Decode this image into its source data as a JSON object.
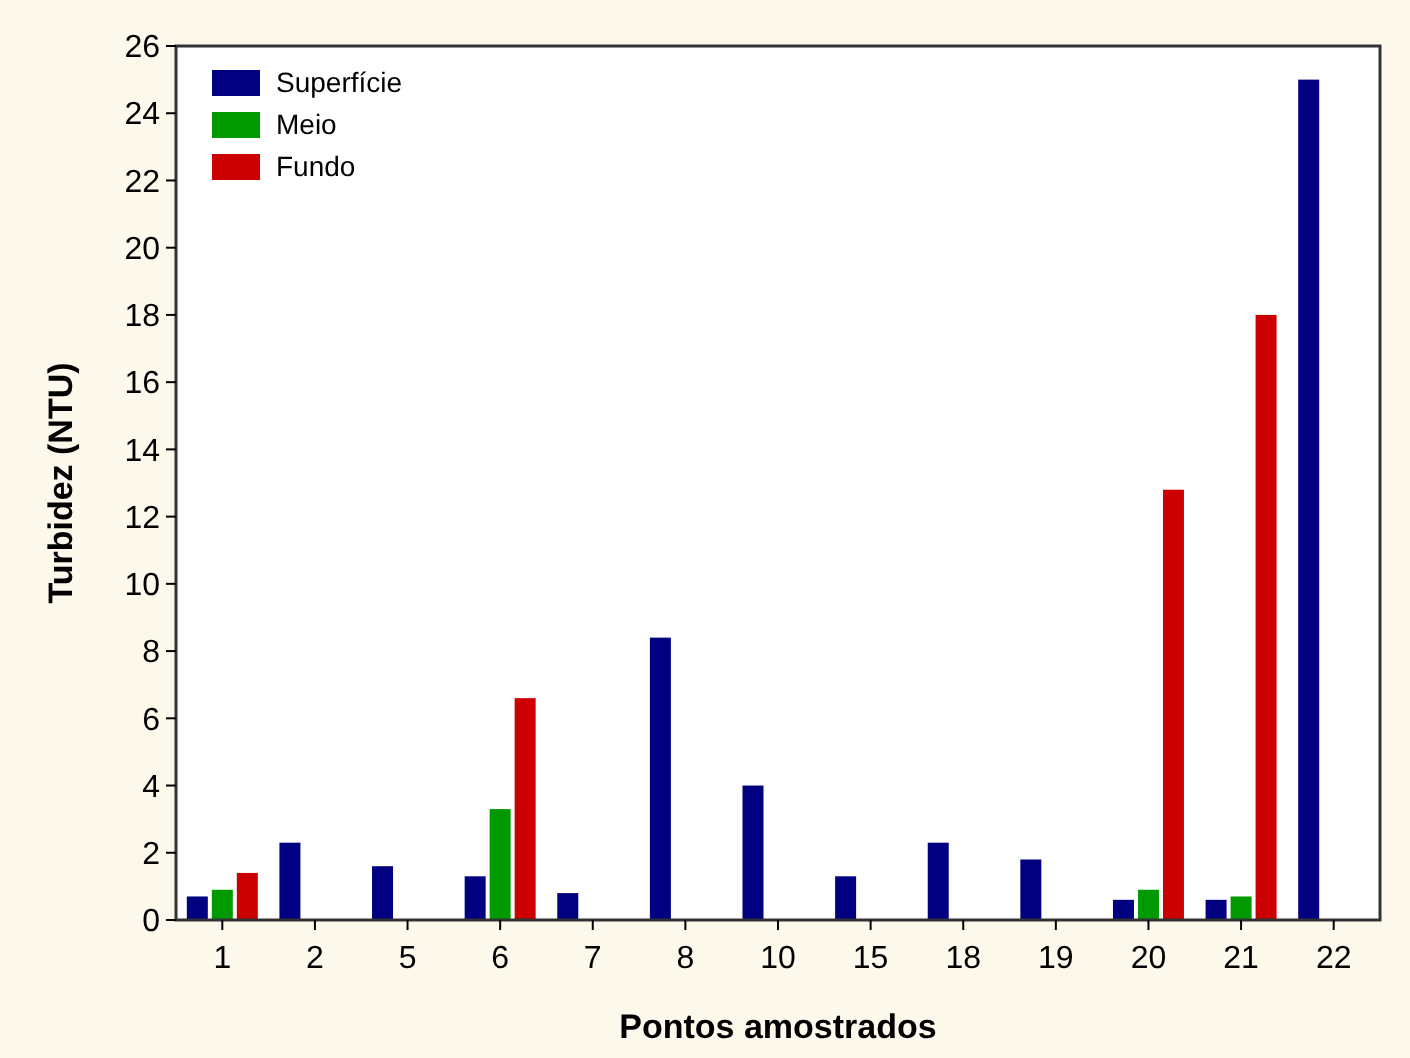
{
  "chart_data": {
    "type": "bar",
    "xlabel": "Pontos amostrados",
    "ylabel": "Turbidez (NTU)",
    "categories": [
      "1",
      "2",
      "5",
      "6",
      "7",
      "8",
      "10",
      "15",
      "18",
      "19",
      "20",
      "21",
      "22"
    ],
    "series": [
      {
        "name": "Superfície",
        "color": "#000080",
        "values": [
          0.7,
          2.3,
          1.6,
          1.3,
          0.8,
          8.4,
          4.0,
          1.3,
          2.3,
          1.8,
          0.6,
          0.6,
          25.0
        ]
      },
      {
        "name": "Meio",
        "color": "#009900",
        "values": [
          0.9,
          null,
          null,
          3.3,
          null,
          null,
          null,
          null,
          null,
          null,
          0.9,
          0.7,
          null
        ]
      },
      {
        "name": "Fundo",
        "color": "#cc0000",
        "values": [
          1.4,
          null,
          null,
          6.6,
          null,
          null,
          null,
          null,
          null,
          null,
          12.8,
          18.0,
          null
        ]
      }
    ],
    "ylim": [
      0,
      26
    ],
    "yticks": [
      0,
      2,
      4,
      6,
      8,
      10,
      12,
      14,
      16,
      18,
      20,
      22,
      24,
      26
    ],
    "grid": false,
    "legend": "top left"
  }
}
